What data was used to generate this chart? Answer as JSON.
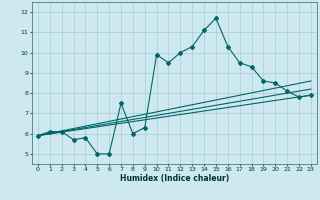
{
  "xlabel": "Humidex (Indice chaleur)",
  "ylabel": "",
  "bg_color": "#cde8ee",
  "grid_color": "#aaccd6",
  "line_color": "#006666",
  "xlim": [
    -0.5,
    23.5
  ],
  "ylim": [
    4.5,
    12.5
  ],
  "xticks": [
    0,
    1,
    2,
    3,
    4,
    5,
    6,
    7,
    8,
    9,
    10,
    11,
    12,
    13,
    14,
    15,
    16,
    17,
    18,
    19,
    20,
    21,
    22,
    23
  ],
  "yticks": [
    5,
    6,
    7,
    8,
    9,
    10,
    11,
    12
  ],
  "line1_x": [
    0,
    1,
    2,
    3,
    4,
    5,
    6,
    7,
    8,
    9,
    10,
    11,
    12,
    13,
    14,
    15,
    16,
    17,
    18,
    19,
    20,
    21,
    22,
    23
  ],
  "line1_y": [
    5.9,
    6.1,
    6.1,
    5.7,
    5.8,
    5.0,
    5.0,
    7.5,
    6.0,
    6.3,
    9.9,
    9.5,
    10.0,
    10.3,
    11.1,
    11.7,
    10.3,
    9.5,
    9.3,
    8.6,
    8.5,
    8.1,
    7.8,
    7.9
  ],
  "line2_x": [
    0,
    23
  ],
  "line2_y": [
    5.9,
    7.9
  ],
  "line3_x": [
    0,
    23
  ],
  "line3_y": [
    5.9,
    8.2
  ],
  "line4_x": [
    0,
    23
  ],
  "line4_y": [
    5.9,
    8.6
  ]
}
